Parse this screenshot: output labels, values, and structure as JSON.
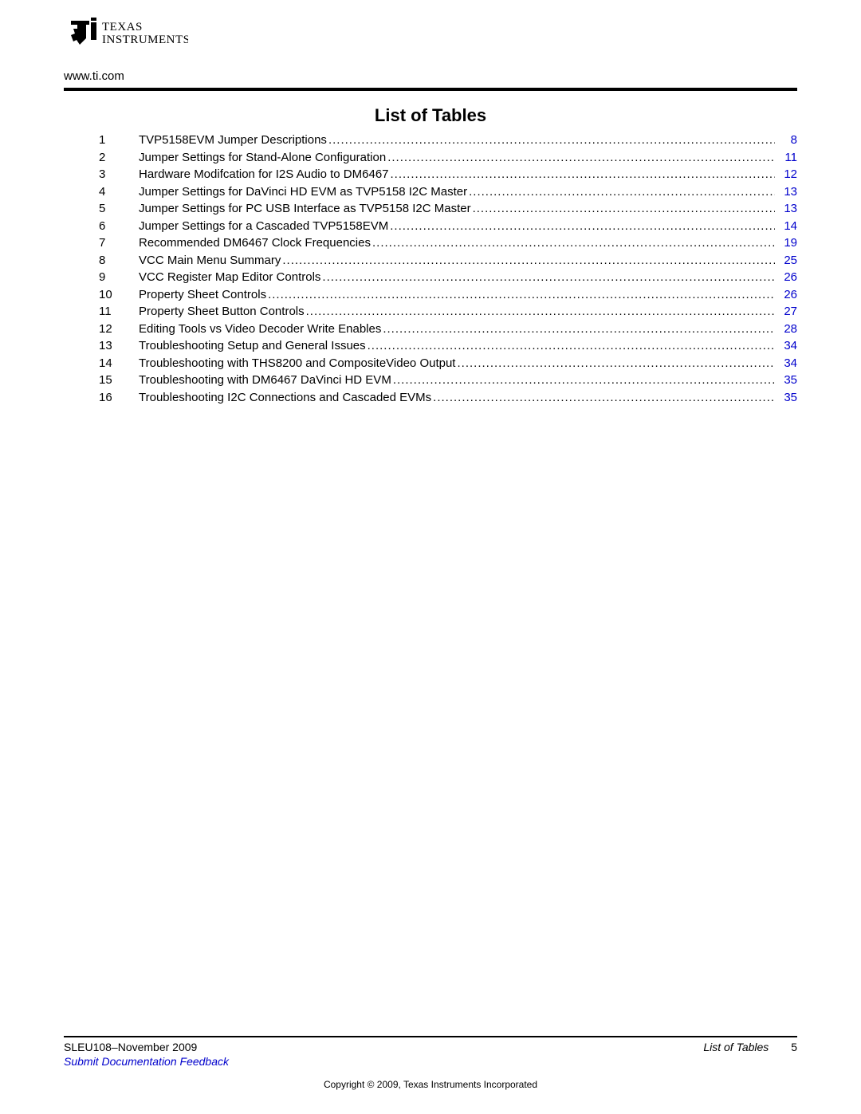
{
  "header": {
    "company_logo_text_top": "TEXAS",
    "company_logo_text_bottom": "INSTRUMENTS",
    "url": "www.ti.com"
  },
  "title": "List of Tables",
  "link_color": "#0000cc",
  "toc": [
    {
      "num": "1",
      "title": "TVP5158EVM Jumper Descriptions",
      "page": "8"
    },
    {
      "num": "2",
      "title": "Jumper Settings for Stand-Alone Configuration",
      "page": "11"
    },
    {
      "num": "3",
      "title": "Hardware Modifcation for I2S Audio to DM6467",
      "page": "12"
    },
    {
      "num": "4",
      "title": "Jumper Settings for DaVinci HD EVM as TVP5158 I2C Master",
      "page": "13"
    },
    {
      "num": "5",
      "title": "Jumper Settings for PC USB Interface as TVP5158 I2C Master",
      "page": "13"
    },
    {
      "num": "6",
      "title": "Jumper Settings for a Cascaded TVP5158EVM",
      "page": "14"
    },
    {
      "num": "7",
      "title": "Recommended DM6467 Clock Frequencies",
      "page": "19"
    },
    {
      "num": "8",
      "title": "VCC Main Menu Summary",
      "page": "25"
    },
    {
      "num": "9",
      "title": "VCC Register Map Editor Controls",
      "page": "26"
    },
    {
      "num": "10",
      "title": "Property Sheet Controls",
      "page": "26"
    },
    {
      "num": "11",
      "title": "Property Sheet Button Controls",
      "page": "27"
    },
    {
      "num": "12",
      "title": "Editing Tools vs Video Decoder Write Enables",
      "page": "28"
    },
    {
      "num": "13",
      "title": "Troubleshooting Setup and General Issues",
      "page": "34"
    },
    {
      "num": "14",
      "title": "Troubleshooting with THS8200 and CompositeVideo Output",
      "page": "34"
    },
    {
      "num": "15",
      "title": "Troubleshooting with DM6467 DaVinci HD EVM",
      "page": "35"
    },
    {
      "num": "16",
      "title": "Troubleshooting I2C Connections and Cascaded EVMs",
      "page": "35"
    }
  ],
  "footer": {
    "doc_id": "SLEU108–November 2009",
    "section_title": "List of Tables",
    "page_number": "5",
    "feedback_link_text": "Submit Documentation Feedback",
    "copyright": "Copyright © 2009, Texas Instruments Incorporated"
  }
}
